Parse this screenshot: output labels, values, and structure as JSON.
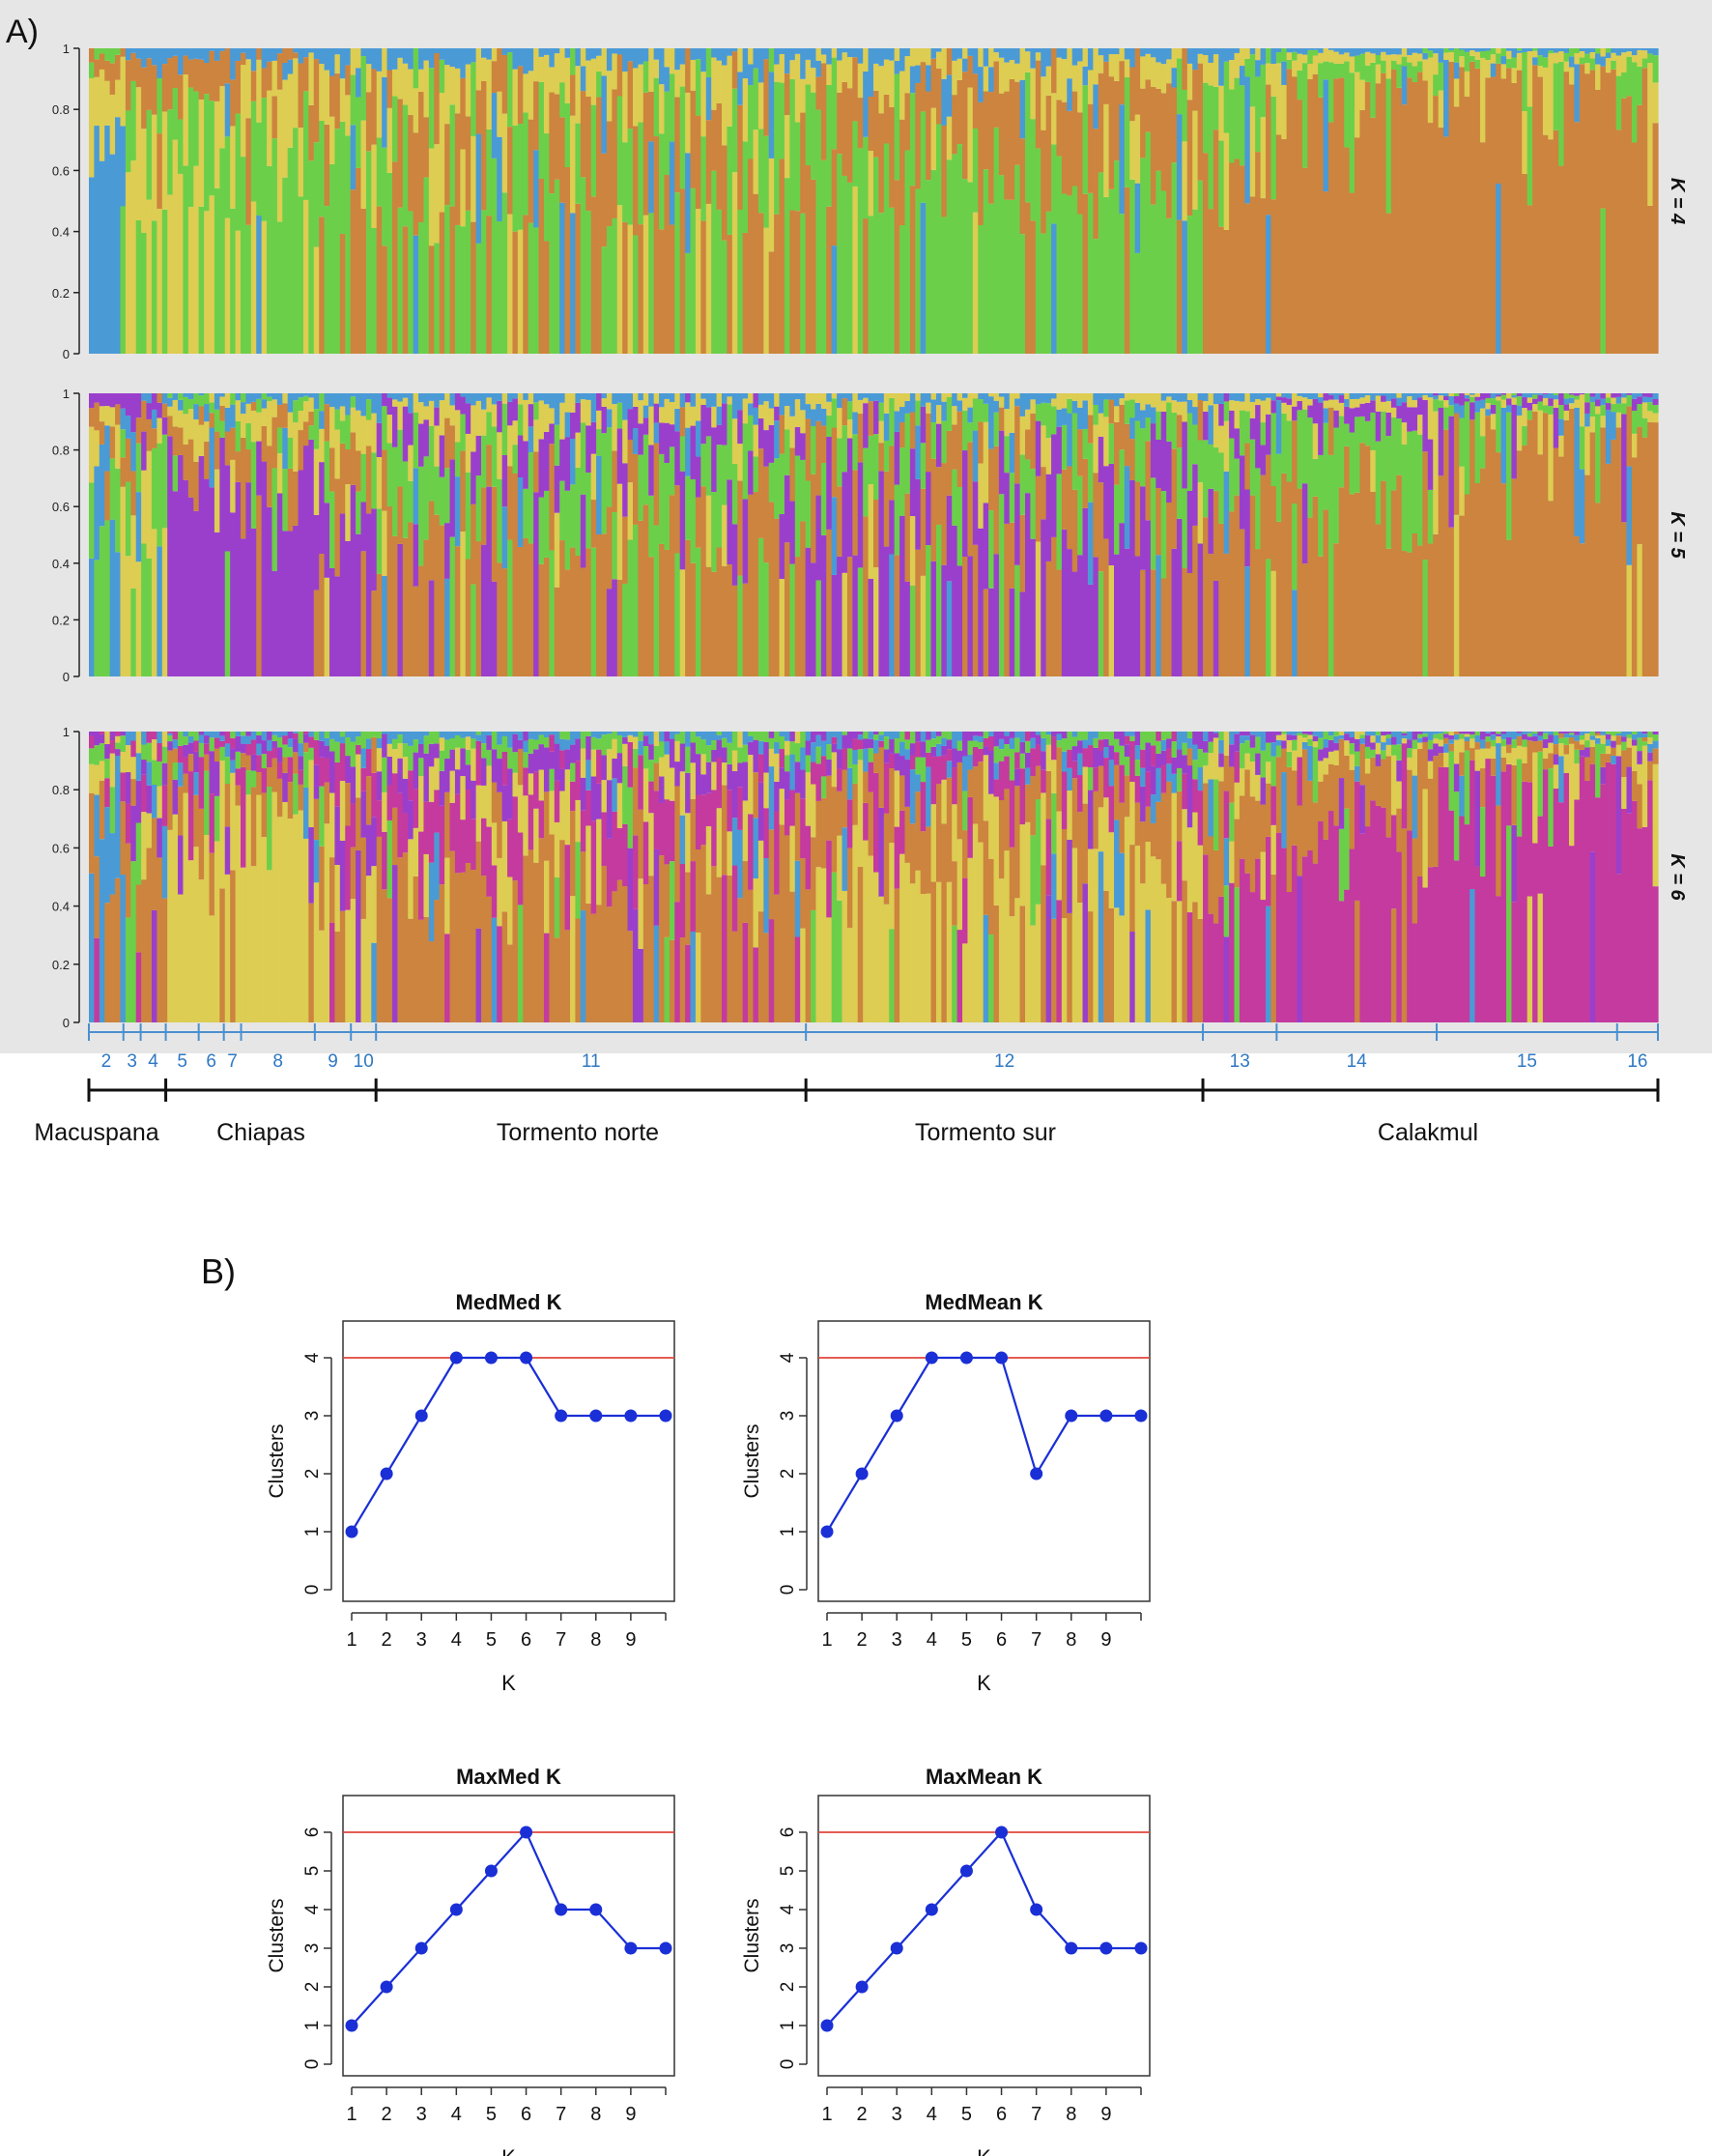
{
  "panel_a_label": "A)",
  "panel_b_label": "B)",
  "structure_plot": {
    "ytick_labels": [
      "0",
      "0.2",
      "0.4",
      "0.6",
      "0.8",
      "1"
    ],
    "k_labels": [
      "K = 4",
      "K = 5",
      "K = 6"
    ],
    "colors": {
      "blue": "#4a9ad6",
      "green": "#6ccf4a",
      "yellow": "#ddcd52",
      "orange": "#cc843e",
      "purple": "#9a3fcc",
      "magenta": "#c43a9e"
    },
    "population_numbers": [
      "2",
      "3",
      "4",
      "5",
      "6",
      "7",
      "8",
      "9",
      "10",
      "11",
      "12",
      "13",
      "14",
      "15",
      "16"
    ],
    "regions": [
      "Macuspana",
      "Chiapas",
      "Tormento norte",
      "Tormento sur",
      "Calakmul"
    ]
  },
  "chart_data": [
    {
      "type": "bar",
      "subtype": "stacked-admixture",
      "title": "K = 4",
      "ylim": [
        0,
        1
      ],
      "series_colors": [
        "blue",
        "green",
        "yellow",
        "orange"
      ],
      "population_mean_ancestry": [
        {
          "pop": "2",
          "values": [
            0.55,
            0.05,
            0.3,
            0.1
          ]
        },
        {
          "pop": "3",
          "values": [
            0.05,
            0.3,
            0.55,
            0.1
          ]
        },
        {
          "pop": "4",
          "values": [
            0.05,
            0.45,
            0.35,
            0.15
          ]
        },
        {
          "pop": "5",
          "values": [
            0.03,
            0.4,
            0.45,
            0.12
          ]
        },
        {
          "pop": "6",
          "values": [
            0.03,
            0.45,
            0.4,
            0.12
          ]
        },
        {
          "pop": "7",
          "values": [
            0.1,
            0.5,
            0.25,
            0.15
          ]
        },
        {
          "pop": "8",
          "values": [
            0.05,
            0.55,
            0.3,
            0.1
          ]
        },
        {
          "pop": "9",
          "values": [
            0.05,
            0.5,
            0.2,
            0.25
          ]
        },
        {
          "pop": "10",
          "values": [
            0.05,
            0.4,
            0.15,
            0.4
          ]
        },
        {
          "pop": "11",
          "values": [
            0.05,
            0.4,
            0.15,
            0.4
          ]
        },
        {
          "pop": "12",
          "values": [
            0.05,
            0.55,
            0.1,
            0.3
          ]
        },
        {
          "pop": "13",
          "values": [
            0.05,
            0.2,
            0.1,
            0.65
          ]
        },
        {
          "pop": "14",
          "values": [
            0.02,
            0.05,
            0.05,
            0.88
          ]
        },
        {
          "pop": "15",
          "values": [
            0.02,
            0.03,
            0.05,
            0.9
          ]
        },
        {
          "pop": "16",
          "values": [
            0.02,
            0.1,
            0.05,
            0.83
          ]
        }
      ]
    },
    {
      "type": "bar",
      "subtype": "stacked-admixture",
      "title": "K = 5",
      "ylim": [
        0,
        1
      ],
      "series_colors": [
        "blue",
        "green",
        "yellow",
        "orange",
        "purple"
      ],
      "population_mean_ancestry": [
        {
          "pop": "2",
          "values": [
            0.35,
            0.35,
            0.15,
            0.1,
            0.05
          ]
        },
        {
          "pop": "3",
          "values": [
            0.1,
            0.35,
            0.35,
            0.1,
            0.1
          ]
        },
        {
          "pop": "4",
          "values": [
            0.05,
            0.4,
            0.3,
            0.1,
            0.15
          ]
        },
        {
          "pop": "5",
          "values": [
            0.03,
            0.05,
            0.1,
            0.1,
            0.72
          ]
        },
        {
          "pop": "6",
          "values": [
            0.03,
            0.05,
            0.1,
            0.12,
            0.7
          ]
        },
        {
          "pop": "7",
          "values": [
            0.05,
            0.1,
            0.1,
            0.15,
            0.6
          ]
        },
        {
          "pop": "8",
          "values": [
            0.03,
            0.05,
            0.1,
            0.12,
            0.7
          ]
        },
        {
          "pop": "9",
          "values": [
            0.05,
            0.1,
            0.15,
            0.25,
            0.45
          ]
        },
        {
          "pop": "10",
          "values": [
            0.05,
            0.1,
            0.1,
            0.3,
            0.45
          ]
        },
        {
          "pop": "11",
          "values": [
            0.05,
            0.3,
            0.1,
            0.4,
            0.15
          ]
        },
        {
          "pop": "12",
          "values": [
            0.05,
            0.2,
            0.05,
            0.3,
            0.4
          ]
        },
        {
          "pop": "13",
          "values": [
            0.05,
            0.2,
            0.1,
            0.55,
            0.1
          ]
        },
        {
          "pop": "14",
          "values": [
            0.02,
            0.25,
            0.05,
            0.63,
            0.05
          ]
        },
        {
          "pop": "15",
          "values": [
            0.02,
            0.03,
            0.03,
            0.9,
            0.02
          ]
        },
        {
          "pop": "16",
          "values": [
            0.02,
            0.05,
            0.05,
            0.86,
            0.02
          ]
        }
      ]
    },
    {
      "type": "bar",
      "subtype": "stacked-admixture",
      "title": "K = 6",
      "ylim": [
        0,
        1
      ],
      "series_colors": [
        "blue",
        "green",
        "yellow",
        "orange",
        "purple",
        "magenta"
      ],
      "population_mean_ancestry": [
        {
          "pop": "2",
          "values": [
            0.4,
            0.1,
            0.1,
            0.3,
            0.05,
            0.05
          ]
        },
        {
          "pop": "3",
          "values": [
            0.05,
            0.45,
            0.1,
            0.2,
            0.1,
            0.1
          ]
        },
        {
          "pop": "4",
          "values": [
            0.1,
            0.1,
            0.15,
            0.5,
            0.1,
            0.05
          ]
        },
        {
          "pop": "5",
          "values": [
            0.03,
            0.05,
            0.75,
            0.1,
            0.05,
            0.02
          ]
        },
        {
          "pop": "6",
          "values": [
            0.03,
            0.05,
            0.7,
            0.12,
            0.05,
            0.05
          ]
        },
        {
          "pop": "7",
          "values": [
            0.05,
            0.05,
            0.6,
            0.15,
            0.1,
            0.05
          ]
        },
        {
          "pop": "8",
          "values": [
            0.03,
            0.03,
            0.72,
            0.12,
            0.05,
            0.05
          ]
        },
        {
          "pop": "9",
          "values": [
            0.03,
            0.05,
            0.4,
            0.25,
            0.15,
            0.12
          ]
        },
        {
          "pop": "10",
          "values": [
            0.03,
            0.05,
            0.35,
            0.3,
            0.15,
            0.12
          ]
        },
        {
          "pop": "11",
          "values": [
            0.03,
            0.05,
            0.15,
            0.45,
            0.1,
            0.22
          ]
        },
        {
          "pop": "12",
          "values": [
            0.05,
            0.05,
            0.45,
            0.3,
            0.05,
            0.1
          ]
        },
        {
          "pop": "13",
          "values": [
            0.03,
            0.1,
            0.1,
            0.3,
            0.05,
            0.42
          ]
        },
        {
          "pop": "14",
          "values": [
            0.02,
            0.03,
            0.05,
            0.25,
            0.03,
            0.62
          ]
        },
        {
          "pop": "15",
          "values": [
            0.02,
            0.02,
            0.05,
            0.05,
            0.02,
            0.84
          ]
        },
        {
          "pop": "16",
          "values": [
            0.02,
            0.02,
            0.05,
            0.05,
            0.02,
            0.84
          ]
        }
      ]
    },
    {
      "type": "line",
      "title": "MedMed K",
      "xlabel": "K",
      "ylabel": "Clusters",
      "x": [
        1,
        2,
        3,
        4,
        5,
        6,
        7,
        8,
        9,
        10
      ],
      "y": [
        1,
        2,
        3,
        4,
        4,
        4,
        3,
        3,
        3,
        3
      ],
      "xticks": [
        "1",
        "2",
        "3",
        "4",
        "5",
        "6",
        "7",
        "8",
        "9"
      ],
      "yticks": [
        "0",
        "1",
        "2",
        "3",
        "4"
      ],
      "ylim": [
        0,
        4
      ],
      "reference_line": 4
    },
    {
      "type": "line",
      "title": "MedMean K",
      "xlabel": "K",
      "ylabel": "Clusters",
      "x": [
        1,
        2,
        3,
        4,
        5,
        6,
        7,
        8,
        9,
        10
      ],
      "y": [
        1,
        2,
        3,
        4,
        4,
        4,
        2,
        3,
        3,
        3
      ],
      "xticks": [
        "1",
        "2",
        "3",
        "4",
        "5",
        "6",
        "7",
        "8",
        "9"
      ],
      "yticks": [
        "0",
        "1",
        "2",
        "3",
        "4"
      ],
      "ylim": [
        0,
        4
      ],
      "reference_line": 4
    },
    {
      "type": "line",
      "title": "MaxMed K",
      "xlabel": "K",
      "ylabel": "Clusters",
      "x": [
        1,
        2,
        3,
        4,
        5,
        6,
        7,
        8,
        9,
        10
      ],
      "y": [
        1,
        2,
        3,
        4,
        5,
        6,
        4,
        4,
        3,
        3
      ],
      "xticks": [
        "1",
        "2",
        "3",
        "4",
        "5",
        "6",
        "7",
        "8",
        "9"
      ],
      "yticks": [
        "0",
        "1",
        "2",
        "3",
        "4",
        "5",
        "6"
      ],
      "ylim": [
        0,
        6
      ],
      "reference_line": 6
    },
    {
      "type": "line",
      "title": "MaxMean K",
      "xlabel": "K",
      "ylabel": "Clusters",
      "x": [
        1,
        2,
        3,
        4,
        5,
        6,
        7,
        8,
        9,
        10
      ],
      "y": [
        1,
        2,
        3,
        4,
        5,
        6,
        4,
        3,
        3,
        3
      ],
      "xticks": [
        "1",
        "2",
        "3",
        "4",
        "5",
        "6",
        "7",
        "8",
        "9"
      ],
      "yticks": [
        "0",
        "1",
        "2",
        "3",
        "4",
        "5",
        "6"
      ],
      "ylim": [
        0,
        6
      ],
      "reference_line": 6
    }
  ]
}
